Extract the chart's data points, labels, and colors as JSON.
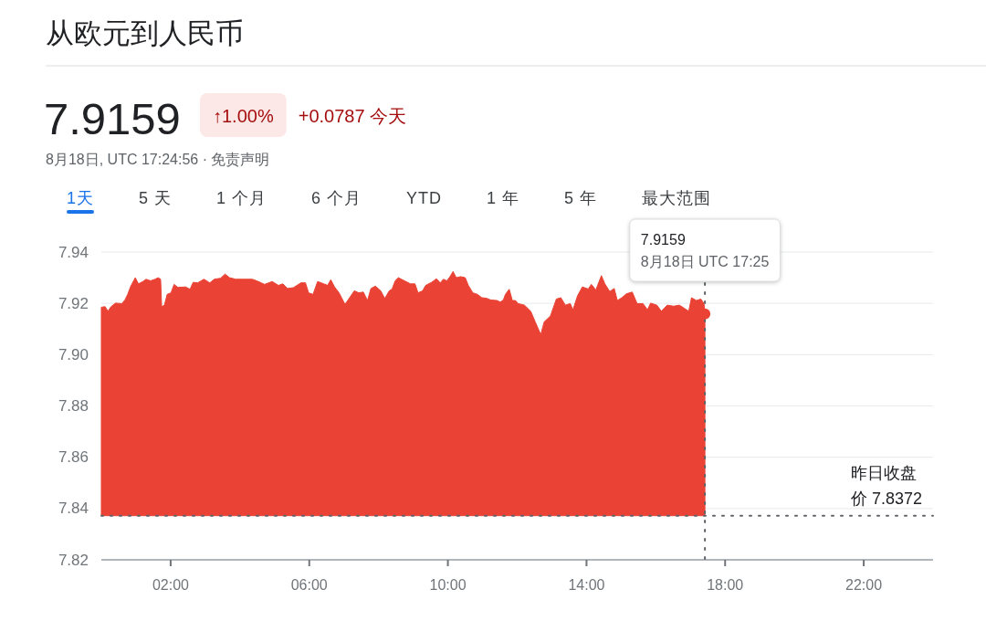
{
  "chart_data": {
    "type": "area",
    "title": "从欧元到人民币",
    "annotations": [
      "7.9159",
      "↑1.00%",
      "+0.0787 今天",
      "8月18日, UTC 17:24:56 · 免责声明",
      "1天",
      "5 天",
      "1 个月",
      "6 个月",
      "YTD",
      "1 年",
      "5 年",
      "最大范围"
    ],
    "xlim": [
      0,
      24
    ],
    "xticks": [
      {
        "value": 2,
        "label": "02:00"
      },
      {
        "value": 6,
        "label": "06:00"
      },
      {
        "value": 10,
        "label": "10:00"
      },
      {
        "value": 14,
        "label": "14:00"
      },
      {
        "value": 18,
        "label": "18:00"
      },
      {
        "value": 22,
        "label": "22:00"
      }
    ],
    "ylim": [
      7.82,
      7.94
    ],
    "yticks": [
      7.82,
      7.84,
      7.86,
      7.88,
      {
        "value": 7.9,
        "label": "7.90"
      },
      7.92,
      7.94
    ],
    "grid": "y",
    "ref_lines": [
      {
        "axis": "y",
        "value": 7.8372,
        "label": "昨日收盘价 7.8372",
        "line_style": "dotted",
        "color": "#5f6368"
      },
      {
        "axis": "x",
        "value": 17.417,
        "label": "7.9159\n8月18日 UTC 17:25",
        "line_style": "dotted",
        "color": "#5f6368"
      }
    ],
    "series": [
      {
        "color": "#ea4335",
        "x": [
          0,
          0.11,
          0.19,
          0.28,
          0.41,
          0.59,
          0.68,
          0.76,
          0.85,
          0.98,
          1.07,
          1.2,
          1.29,
          1.42,
          1.55,
          1.64,
          1.71,
          1.74,
          1.82,
          1.9,
          2.01,
          2.1,
          2.21,
          2.43,
          2.56,
          2.65,
          2.78,
          2.96,
          3.13,
          3.26,
          3.44,
          3.57,
          3.7,
          3.88,
          4.1,
          4.36,
          4.53,
          4.71,
          4.93,
          5.11,
          5.24,
          5.37,
          5.54,
          5.76,
          5.89,
          5.98,
          6.11,
          6.24,
          6.42,
          6.53,
          6.62,
          6.73,
          6.86,
          7.03,
          7.12,
          7.3,
          7.43,
          7.56,
          7.68,
          7.78,
          7.91,
          8.06,
          8.18,
          8.31,
          8.39,
          8.48,
          8.57,
          8.79,
          8.92,
          9.05,
          9.14,
          9.27,
          9.36,
          9.53,
          9.67,
          9.78,
          9.87,
          9.97,
          10.06,
          10.15,
          10.24,
          10.37,
          10.5,
          10.59,
          10.72,
          10.85,
          10.98,
          11.11,
          11.24,
          11.42,
          11.51,
          11.6,
          11.66,
          11.77,
          11.86,
          11.95,
          12.03,
          12.21,
          12.39,
          12.52,
          12.68,
          12.78,
          12.96,
          13.13,
          13.26,
          13.39,
          13.53,
          13.61,
          13.74,
          13.88,
          14.05,
          14.14,
          14.27,
          14.43,
          14.53,
          14.67,
          14.8,
          14.89,
          15.02,
          15.15,
          15.32,
          15.46,
          15.63,
          15.76,
          15.85,
          16.03,
          16.16,
          16.33,
          16.51,
          16.68,
          16.82,
          16.95,
          17.03,
          17.17,
          17.3,
          17.39,
          17.417
        ],
        "values": [
          7.9185,
          7.9187,
          7.9169,
          7.9187,
          7.9201,
          7.9199,
          7.9213,
          7.9235,
          7.9267,
          7.93,
          7.9276,
          7.9285,
          7.9294,
          7.9288,
          7.9294,
          7.93,
          7.9294,
          7.9187,
          7.9193,
          7.9235,
          7.9241,
          7.9274,
          7.9262,
          7.9264,
          7.9255,
          7.9282,
          7.928,
          7.9294,
          7.928,
          7.9294,
          7.9298,
          7.9314,
          7.93,
          7.9294,
          7.9294,
          7.9294,
          7.9285,
          7.9274,
          7.9285,
          7.927,
          7.9276,
          7.9258,
          7.9261,
          7.928,
          7.928,
          7.9241,
          7.9235,
          7.9285,
          7.9276,
          7.927,
          7.9292,
          7.9264,
          7.9241,
          7.9196,
          7.9213,
          7.9249,
          7.9241,
          7.9244,
          7.9211,
          7.9258,
          7.9267,
          7.9249,
          7.9219,
          7.9249,
          7.9256,
          7.9288,
          7.93,
          7.9285,
          7.9276,
          7.9276,
          7.9241,
          7.9249,
          7.927,
          7.9282,
          7.9296,
          7.928,
          7.9294,
          7.9288,
          7.9304,
          7.9324,
          7.93,
          7.9304,
          7.93,
          7.927,
          7.9241,
          7.9235,
          7.9222,
          7.922,
          7.9213,
          7.9211,
          7.9205,
          7.9213,
          7.9235,
          7.9255,
          7.9211,
          7.9211,
          7.9199,
          7.9193,
          7.9169,
          7.9128,
          7.9078,
          7.9128,
          7.9151,
          7.9217,
          7.9222,
          7.9193,
          7.9199,
          7.9175,
          7.9229,
          7.9264,
          7.9256,
          7.9274,
          7.9252,
          7.9308,
          7.9276,
          7.9246,
          7.9258,
          7.9211,
          7.9222,
          7.9237,
          7.9244,
          7.9199,
          7.9199,
          7.9175,
          7.9201,
          7.9193,
          7.9169,
          7.9193,
          7.9189,
          7.9193,
          7.9181,
          7.9169,
          7.9222,
          7.9211,
          7.9217,
          7.9199,
          7.9159
        ]
      },
      {
        "type": "scatter",
        "marker": "circle",
        "color": "#ea4335",
        "x": [
          17.417
        ],
        "values": [
          7.9159
        ]
      }
    ]
  }
}
